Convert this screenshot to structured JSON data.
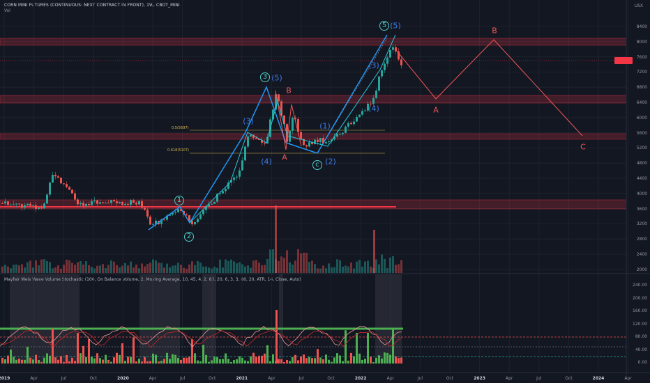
{
  "header": {
    "title": "CORN MINI FUTURES (CONTINUOUS: NEXT CONTRACT IN FRONT), 1W, CBOT_MINI",
    "volume_label": "Vol",
    "currency": "USX"
  },
  "indicator": {
    "label": "Mayfair Weis Wave Volume Stochastic (100, On Balance Volume, 2, Moving Average, 10, 45, 4, 2, 80, 20, 6, 3, 3, 80, 20, ATR, 14, Close, Auto)"
  },
  "price_axis": [
    "8400",
    "8000",
    "7600",
    "7200",
    "6800",
    "6400",
    "6000",
    "5600",
    "5200",
    "4800",
    "4400",
    "4000",
    "3600",
    "3200",
    "2800",
    "2400",
    "2000"
  ],
  "indicator_axis": [
    "240.00",
    "200.00",
    "160.00",
    "120.00",
    "80.00",
    "40.00",
    "0.00"
  ],
  "time_axis": [
    {
      "label": "2019",
      "bold": true
    },
    {
      "label": "Apr",
      "bold": false
    },
    {
      "label": "Jul",
      "bold": false
    },
    {
      "label": "Oct",
      "bold": false
    },
    {
      "label": "2020",
      "bold": true
    },
    {
      "label": "Apr",
      "bold": false
    },
    {
      "label": "Jul",
      "bold": false
    },
    {
      "label": "Oct",
      "bold": false
    },
    {
      "label": "2021",
      "bold": true
    },
    {
      "label": "Apr",
      "bold": false
    },
    {
      "label": "Jul",
      "bold": false
    },
    {
      "label": "Oct",
      "bold": false
    },
    {
      "label": "2022",
      "bold": true
    },
    {
      "label": "Apr",
      "bold": false
    },
    {
      "label": "Jul",
      "bold": false
    },
    {
      "label": "Oct",
      "bold": false
    },
    {
      "label": "2023",
      "bold": true
    },
    {
      "label": "Apr",
      "bold": false
    },
    {
      "label": "Jul",
      "bold": false
    },
    {
      "label": "Oct",
      "bold": false
    },
    {
      "label": "2024",
      "bold": true
    },
    {
      "label": "Apr",
      "bold": false
    }
  ],
  "fib_labels": {
    "fib_05": "0.5(5697)",
    "fib_0618": "0.618(5107)"
  },
  "wave_labels": {
    "w1_minor": "1",
    "w2_minor": "2",
    "w3_paren": "(3)",
    "w4_paren": "(4)",
    "w3_circled": "3",
    "w5_paren": "(5)",
    "wave_B": "B",
    "wave_A": "A",
    "w1_paren": "(1)",
    "wave_C": "c",
    "w2_paren": "(2)",
    "w3_paren_b": "(3)",
    "w4_paren_b": "(4)",
    "w5_circled": "5",
    "w5_paren_b": "(5)",
    "proj_A": "A",
    "proj_B": "B",
    "proj_C": "C"
  },
  "colors": {
    "background": "#131722",
    "wave_blue": "#2962ff",
    "wave_teal": "#26a69a",
    "bear": "#ef5350",
    "bull": "#26a69a",
    "zone": "#f23645",
    "fib": "#d4b44a"
  }
}
